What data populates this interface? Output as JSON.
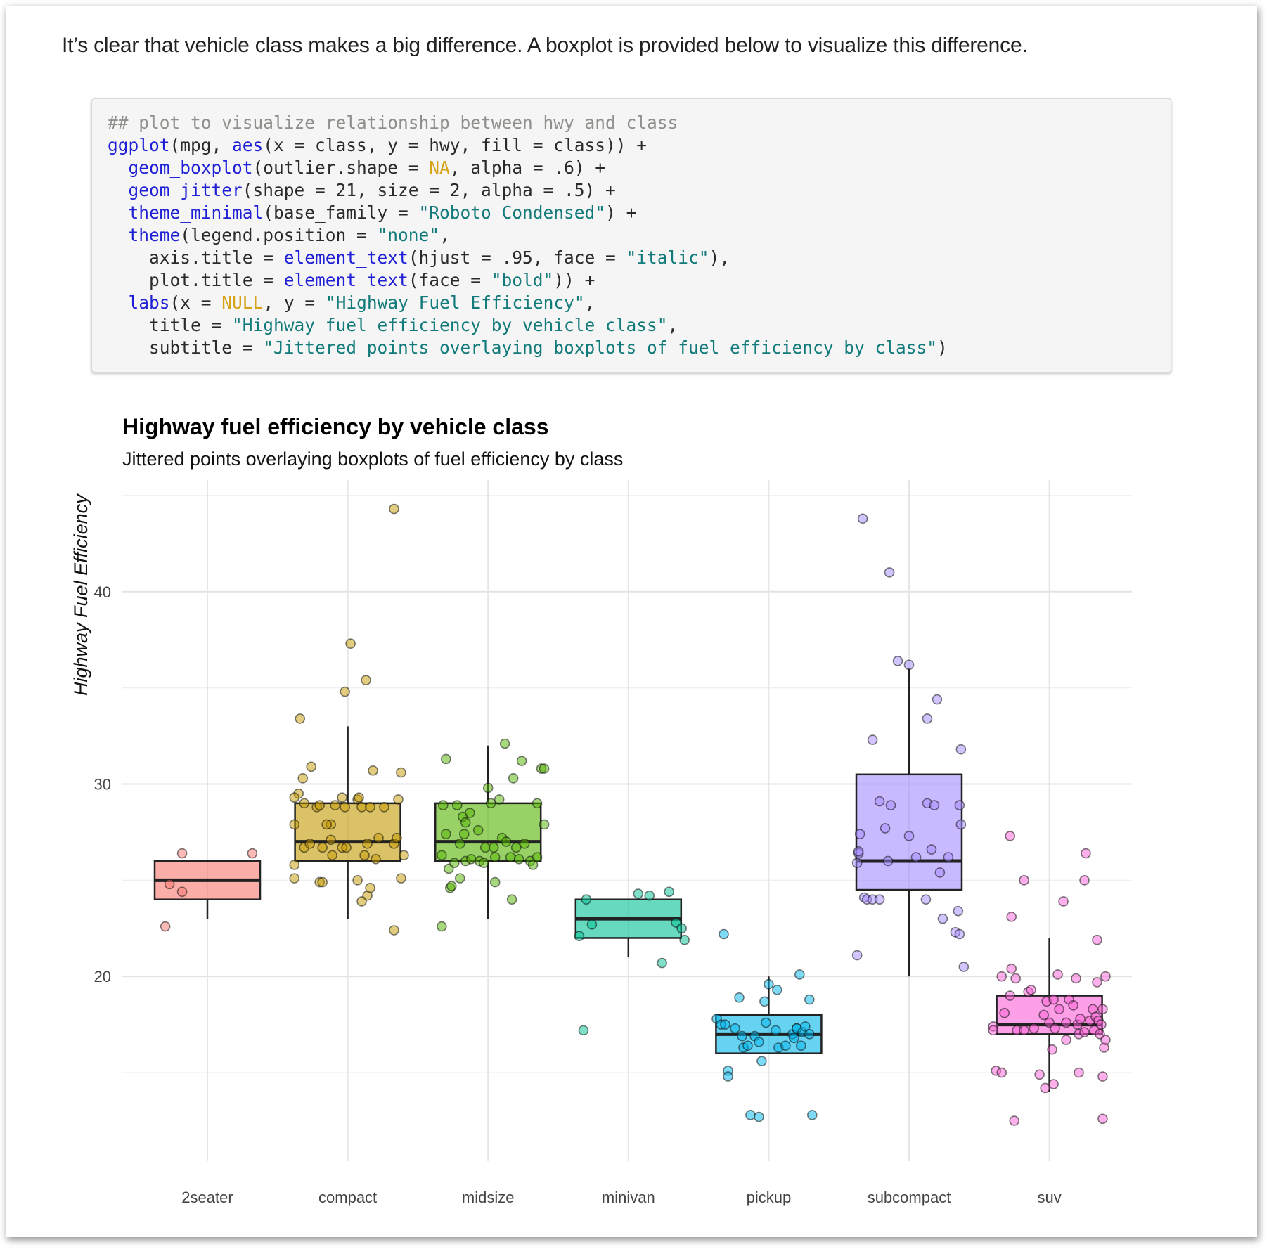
{
  "intro_text": "It’s clear that vehicle class makes a big difference. A boxplot is provided below to visualize this difference.",
  "code": {
    "lines": [
      [
        {
          "t": "## plot to visualize relationship between hwy and class",
          "c": "com"
        }
      ],
      [
        {
          "t": "ggplot",
          "c": "fn"
        },
        {
          "t": "(mpg, "
        },
        {
          "t": "aes",
          "c": "fn"
        },
        {
          "t": "(x = class, y = hwy, fill = class)) +"
        }
      ],
      [
        {
          "t": "  "
        },
        {
          "t": "geom_boxplot",
          "c": "fn"
        },
        {
          "t": "(outlier.shape = "
        },
        {
          "t": "NA",
          "c": "kw"
        },
        {
          "t": ", alpha = .6) +"
        }
      ],
      [
        {
          "t": "  "
        },
        {
          "t": "geom_jitter",
          "c": "fn"
        },
        {
          "t": "(shape = 21, size = 2, alpha = .5) +"
        }
      ],
      [
        {
          "t": "  "
        },
        {
          "t": "theme_minimal",
          "c": "fn"
        },
        {
          "t": "(base_family = "
        },
        {
          "t": "\"Roboto Condensed\"",
          "c": "str"
        },
        {
          "t": ") +"
        }
      ],
      [
        {
          "t": "  "
        },
        {
          "t": "theme",
          "c": "fn"
        },
        {
          "t": "(legend.position = "
        },
        {
          "t": "\"none\"",
          "c": "str"
        },
        {
          "t": ","
        }
      ],
      [
        {
          "t": "    axis.title = "
        },
        {
          "t": "element_text",
          "c": "fn"
        },
        {
          "t": "(hjust = .95, face = "
        },
        {
          "t": "\"italic\"",
          "c": "str"
        },
        {
          "t": "),"
        }
      ],
      [
        {
          "t": "    plot.title = "
        },
        {
          "t": "element_text",
          "c": "fn"
        },
        {
          "t": "(face = "
        },
        {
          "t": "\"bold\"",
          "c": "str"
        },
        {
          "t": ")) +"
        }
      ],
      [
        {
          "t": "  "
        },
        {
          "t": "labs",
          "c": "fn"
        },
        {
          "t": "(x = "
        },
        {
          "t": "NULL",
          "c": "kw"
        },
        {
          "t": ", y = "
        },
        {
          "t": "\"Highway Fuel Efficiency\"",
          "c": "str"
        },
        {
          "t": ","
        }
      ],
      [
        {
          "t": "    title = "
        },
        {
          "t": "\"Highway fuel efficiency by vehicle class\"",
          "c": "str"
        },
        {
          "t": ","
        }
      ],
      [
        {
          "t": "    subtitle = "
        },
        {
          "t": "\"Jittered points overlaying boxplots of fuel efficiency by class\"",
          "c": "str"
        },
        {
          "t": ")"
        }
      ]
    ]
  },
  "chart_data": {
    "type": "boxplot",
    "title": "Highway fuel efficiency by vehicle class",
    "subtitle": "Jittered points overlaying boxplots of fuel efficiency by class",
    "xlabel": "",
    "ylabel": "Highway Fuel Efficiency",
    "ylim": [
      10.4,
      45.8
    ],
    "yticks": [
      20,
      30,
      40
    ],
    "categories": [
      "2seater",
      "compact",
      "midsize",
      "minivan",
      "pickup",
      "subcompact",
      "suv"
    ],
    "colors": {
      "2seater": "#F8766D",
      "compact": "#C49A00",
      "midsize": "#53B400",
      "minivan": "#00C094",
      "pickup": "#00B6EB",
      "subcompact": "#A58AFF",
      "suv": "#FB61D7"
    },
    "boxes": [
      {
        "class": "2seater",
        "ymin": 23,
        "q1": 24,
        "median": 25,
        "q3": 26,
        "ymax": 26
      },
      {
        "class": "compact",
        "ymin": 23,
        "q1": 26,
        "median": 27,
        "q3": 29,
        "ymax": 33
      },
      {
        "class": "midsize",
        "ymin": 23,
        "q1": 26,
        "median": 27,
        "q3": 29,
        "ymax": 32
      },
      {
        "class": "minivan",
        "ymin": 21,
        "q1": 22,
        "median": 23,
        "q3": 24,
        "ymax": 24
      },
      {
        "class": "pickup",
        "ymin": 16,
        "q1": 16,
        "median": 17,
        "q3": 18,
        "ymax": 20
      },
      {
        "class": "subcompact",
        "ymin": 20,
        "q1": 24.5,
        "median": 26,
        "q3": 30.5,
        "ymax": 36
      },
      {
        "class": "suv",
        "ymin": 14,
        "q1": 17,
        "median": 17.5,
        "q3": 19,
        "ymax": 22
      }
    ],
    "points": {
      "2seater": [
        [
          -0.3,
          22.6
        ],
        [
          -0.27,
          24.8
        ],
        [
          -0.18,
          26.4
        ],
        [
          -0.18,
          24.4
        ],
        [
          0.32,
          26.4
        ]
      ],
      "compact": [
        [
          -0.35,
          29.5
        ],
        [
          -0.32,
          30.3
        ],
        [
          -0.31,
          29.0
        ],
        [
          -0.31,
          26.7
        ],
        [
          -0.38,
          29.3
        ],
        [
          -0.38,
          27.9
        ],
        [
          -0.38,
          25.1
        ],
        [
          -0.38,
          25.8
        ],
        [
          -0.34,
          33.4
        ],
        [
          -0.27,
          26.9
        ],
        [
          -0.26,
          30.9
        ],
        [
          -0.22,
          28.8
        ],
        [
          -0.2,
          28.9
        ],
        [
          -0.2,
          24.9
        ],
        [
          -0.18,
          26.7
        ],
        [
          -0.18,
          24.9
        ],
        [
          -0.12,
          27.1
        ],
        [
          -0.12,
          27.9
        ],
        [
          -0.15,
          27.9
        ],
        [
          -0.11,
          26.3
        ],
        [
          -0.09,
          28.9
        ],
        [
          -0.04,
          29.3
        ],
        [
          -0.02,
          28.8
        ],
        [
          -0.04,
          26.7
        ],
        [
          -0.01,
          26.7
        ],
        [
          -0.02,
          34.8
        ],
        [
          0.02,
          37.3
        ],
        [
          0.07,
          29.2
        ],
        [
          0.08,
          29.3
        ],
        [
          0.13,
          35.4
        ],
        [
          0.14,
          24.2
        ],
        [
          0.1,
          23.9
        ],
        [
          0.07,
          25.0
        ],
        [
          0.1,
          28.8
        ],
        [
          0.12,
          26.3
        ],
        [
          0.14,
          26.9
        ],
        [
          0.16,
          28.8
        ],
        [
          0.16,
          24.6
        ],
        [
          0.18,
          30.7
        ],
        [
          0.22,
          27.2
        ],
        [
          0.2,
          26.1
        ],
        [
          0.26,
          28.8
        ],
        [
          0.33,
          44.3
        ],
        [
          0.33,
          26.9
        ],
        [
          0.35,
          27.2
        ],
        [
          0.38,
          25.1
        ],
        [
          0.4,
          26.3
        ],
        [
          0.36,
          29.2
        ],
        [
          0.33,
          22.4
        ],
        [
          0.38,
          30.6
        ]
      ],
      "midsize": [
        [
          -0.33,
          22.6
        ],
        [
          -0.33,
          26.3
        ],
        [
          -0.3,
          31.3
        ],
        [
          -0.32,
          28.9
        ],
        [
          -0.3,
          27.4
        ],
        [
          -0.28,
          25.6
        ],
        [
          -0.27,
          24.6
        ],
        [
          -0.24,
          25.9
        ],
        [
          -0.26,
          24.7
        ],
        [
          -0.22,
          28.9
        ],
        [
          -0.2,
          26.9
        ],
        [
          -0.2,
          25.1
        ],
        [
          -0.18,
          28.3
        ],
        [
          -0.16,
          26.0
        ],
        [
          -0.17,
          27.4
        ],
        [
          -0.16,
          28.0
        ],
        [
          -0.12,
          26.1
        ],
        [
          -0.13,
          28.5
        ],
        [
          -0.06,
          26.0
        ],
        [
          -0.07,
          27.6
        ],
        [
          -0.02,
          26.7
        ],
        [
          -0.03,
          25.9
        ],
        [
          0.0,
          29.8
        ],
        [
          0.02,
          29.0
        ],
        [
          0.05,
          24.9
        ],
        [
          0.05,
          26.2
        ],
        [
          0.04,
          26.7
        ],
        [
          0.08,
          29.2
        ],
        [
          0.1,
          27.2
        ],
        [
          0.12,
          32.1
        ],
        [
          0.13,
          27.0
        ],
        [
          0.16,
          26.2
        ],
        [
          0.18,
          30.3
        ],
        [
          0.2,
          26.7
        ],
        [
          0.22,
          26.1
        ],
        [
          0.26,
          26.9
        ],
        [
          0.24,
          31.2
        ],
        [
          0.3,
          26.0
        ],
        [
          0.32,
          25.8
        ],
        [
          0.35,
          26.2
        ],
        [
          0.38,
          30.8
        ],
        [
          0.4,
          30.8
        ],
        [
          0.4,
          27.9
        ],
        [
          0.35,
          29.0
        ],
        [
          0.17,
          24.0
        ]
      ],
      "minivan": [
        [
          -0.35,
          22.1
        ],
        [
          -0.32,
          17.2
        ],
        [
          -0.3,
          24.0
        ],
        [
          -0.26,
          22.7
        ],
        [
          0.07,
          24.3
        ],
        [
          0.15,
          24.2
        ],
        [
          0.24,
          20.7
        ],
        [
          0.29,
          24.4
        ],
        [
          0.34,
          22.8
        ],
        [
          0.38,
          22.5
        ],
        [
          0.4,
          21.9
        ]
      ],
      "pickup": [
        [
          -0.37,
          17.8
        ],
        [
          -0.34,
          17.5
        ],
        [
          -0.31,
          17.5
        ],
        [
          -0.29,
          15.1
        ],
        [
          -0.29,
          14.8
        ],
        [
          -0.24,
          17.3
        ],
        [
          -0.19,
          16.9
        ],
        [
          -0.21,
          18.9
        ],
        [
          -0.18,
          16.3
        ],
        [
          -0.15,
          16.4
        ],
        [
          -0.1,
          16.9
        ],
        [
          -0.07,
          16.6
        ],
        [
          -0.05,
          15.6
        ],
        [
          -0.02,
          17.6
        ],
        [
          -0.03,
          18.7
        ],
        [
          0.0,
          19.6
        ],
        [
          0.06,
          19.3
        ],
        [
          0.05,
          17.2
        ],
        [
          0.07,
          16.3
        ],
        [
          0.12,
          16.4
        ],
        [
          0.17,
          17.0
        ],
        [
          0.18,
          16.8
        ],
        [
          0.2,
          17.3
        ],
        [
          0.2,
          17.3
        ],
        [
          0.22,
          20.1
        ],
        [
          0.23,
          16.4
        ],
        [
          0.24,
          17.1
        ],
        [
          0.26,
          17.4
        ],
        [
          0.29,
          17.0
        ],
        [
          0.29,
          18.8
        ],
        [
          -0.32,
          22.2
        ],
        [
          0.31,
          12.8
        ],
        [
          -0.13,
          12.8
        ],
        [
          -0.07,
          12.7
        ]
      ],
      "subcompact": [
        [
          -0.37,
          25.9
        ],
        [
          -0.35,
          27.4
        ],
        [
          -0.37,
          21.1
        ],
        [
          -0.36,
          26.4
        ],
        [
          -0.36,
          26.5
        ],
        [
          -0.33,
          43.8
        ],
        [
          -0.32,
          24.1
        ],
        [
          -0.3,
          24.0
        ],
        [
          -0.26,
          32.3
        ],
        [
          -0.26,
          24.0
        ],
        [
          -0.21,
          29.1
        ],
        [
          -0.21,
          24.0
        ],
        [
          -0.17,
          27.7
        ],
        [
          -0.15,
          26.0
        ],
        [
          -0.14,
          41.0
        ],
        [
          -0.13,
          28.9
        ],
        [
          -0.08,
          36.4
        ],
        [
          0.0,
          36.2
        ],
        [
          0.0,
          27.3
        ],
        [
          0.05,
          26.2
        ],
        [
          0.12,
          24.0
        ],
        [
          0.13,
          29.0
        ],
        [
          0.13,
          33.4
        ],
        [
          0.16,
          26.6
        ],
        [
          0.18,
          28.9
        ],
        [
          0.2,
          34.4
        ],
        [
          0.22,
          25.4
        ],
        [
          0.24,
          23.0
        ],
        [
          0.28,
          26.2
        ],
        [
          0.33,
          22.3
        ],
        [
          0.35,
          23.4
        ],
        [
          0.36,
          28.9
        ],
        [
          0.37,
          27.9
        ],
        [
          0.37,
          31.8
        ],
        [
          0.36,
          22.2
        ],
        [
          0.39,
          20.5
        ]
      ],
      "suv": [
        [
          -0.4,
          17.4
        ],
        [
          -0.4,
          17.2
        ],
        [
          -0.38,
          15.1
        ],
        [
          -0.34,
          20.0
        ],
        [
          -0.34,
          15.0
        ],
        [
          -0.32,
          18.1
        ],
        [
          -0.28,
          27.3
        ],
        [
          -0.28,
          19.0
        ],
        [
          -0.27,
          23.1
        ],
        [
          -0.27,
          20.4
        ],
        [
          -0.25,
          12.5
        ],
        [
          -0.24,
          19.9
        ],
        [
          -0.23,
          17.2
        ],
        [
          -0.18,
          25.0
        ],
        [
          -0.18,
          17.2
        ],
        [
          -0.15,
          19.2
        ],
        [
          -0.13,
          19.3
        ],
        [
          -0.11,
          17.3
        ],
        [
          -0.07,
          14.9
        ],
        [
          -0.04,
          18.0
        ],
        [
          -0.02,
          18.7
        ],
        [
          -0.03,
          14.2
        ],
        [
          0.0,
          17.6
        ],
        [
          0.02,
          16.2
        ],
        [
          0.03,
          18.8
        ],
        [
          0.03,
          14.4
        ],
        [
          0.04,
          17.3
        ],
        [
          0.06,
          20.1
        ],
        [
          0.07,
          18.3
        ],
        [
          0.1,
          23.9
        ],
        [
          0.12,
          16.7
        ],
        [
          0.12,
          17.6
        ],
        [
          0.14,
          18.8
        ],
        [
          0.17,
          18.5
        ],
        [
          0.19,
          19.9
        ],
        [
          0.2,
          17.5
        ],
        [
          0.21,
          15.0
        ],
        [
          0.21,
          17.0
        ],
        [
          0.22,
          17.8
        ],
        [
          0.25,
          17.1
        ],
        [
          0.25,
          25.0
        ],
        [
          0.26,
          26.4
        ],
        [
          0.29,
          17.7
        ],
        [
          0.31,
          18.3
        ],
        [
          0.32,
          17.2
        ],
        [
          0.33,
          17.9
        ],
        [
          0.34,
          19.7
        ],
        [
          0.34,
          21.9
        ],
        [
          0.35,
          17.7
        ],
        [
          0.36,
          17.0
        ],
        [
          0.37,
          17.5
        ],
        [
          0.38,
          14.8
        ],
        [
          0.39,
          16.3
        ],
        [
          0.38,
          12.6
        ],
        [
          0.4,
          20.0
        ],
        [
          0.38,
          18.3
        ],
        [
          0.4,
          16.7
        ]
      ]
    }
  }
}
